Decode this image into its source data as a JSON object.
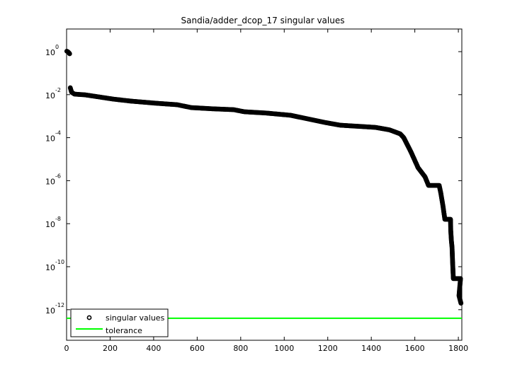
{
  "chart_data": {
    "type": "scatter",
    "title": "Sandia/adder_dcop_17 singular values",
    "xlabel": "",
    "ylabel": "",
    "xlim": [
      0,
      1816
    ],
    "ylim_log10": [
      -13.3,
      1.05
    ],
    "yscale": "log",
    "grid": false,
    "legend_position": "lower left",
    "x_ticks": [
      0,
      200,
      400,
      600,
      800,
      1000,
      1200,
      1400,
      1600,
      1800
    ],
    "y_ticks": [
      {
        "base": "10",
        "exp": "0",
        "log": 0
      },
      {
        "base": "10",
        "exp": "-2",
        "log": -2
      },
      {
        "base": "10",
        "exp": "-4",
        "log": -4
      },
      {
        "base": "10",
        "exp": "-6",
        "log": -6
      },
      {
        "base": "10",
        "exp": "-8",
        "log": -8
      },
      {
        "base": "10",
        "exp": "-10",
        "log": -10
      },
      {
        "base": "10",
        "exp": "-12",
        "log": -12
      }
    ],
    "series": [
      {
        "name": "singular values",
        "marker": "circle",
        "color": "#000000",
        "x": [
          1,
          5,
          10,
          14,
          17,
          23,
          36,
          85,
          150,
          215,
          296,
          410,
          508,
          573,
          670,
          768,
          817,
          915,
          1029,
          1094,
          1191,
          1257,
          1420,
          1484,
          1533,
          1549,
          1582,
          1615,
          1647,
          1663,
          1712,
          1719,
          1729,
          1738,
          1764,
          1765,
          1768,
          1771,
          1774,
          1777,
          1810,
          1803,
          1812
        ],
        "values": [
          1.05,
          1.0,
          0.9,
          0.8,
          0.021,
          0.013,
          0.0106,
          0.0098,
          0.0078,
          0.0062,
          0.005,
          0.004,
          0.0034,
          0.0025,
          0.0022,
          0.002,
          0.0016,
          0.0014,
          0.0011,
          0.0008,
          0.0005,
          0.00038,
          0.0003,
          0.00023,
          0.00015,
          0.0001,
          2.2e-05,
          4e-06,
          1.5e-06,
          6e-07,
          6e-07,
          2.8e-07,
          7e-08,
          1.6e-08,
          1.6e-08,
          5e-09,
          1.6e-09,
          8e-10,
          1.3e-10,
          2.8e-11,
          2.8e-11,
          4.5e-12,
          2e-12
        ]
      },
      {
        "name": "tolerance",
        "marker": "line",
        "color": "#00ff00",
        "x": [
          0,
          1816
        ],
        "values": [
          4e-13,
          4e-13
        ]
      }
    ]
  },
  "legend": {
    "items": [
      {
        "label": "singular values"
      },
      {
        "label": "tolerance"
      }
    ]
  }
}
